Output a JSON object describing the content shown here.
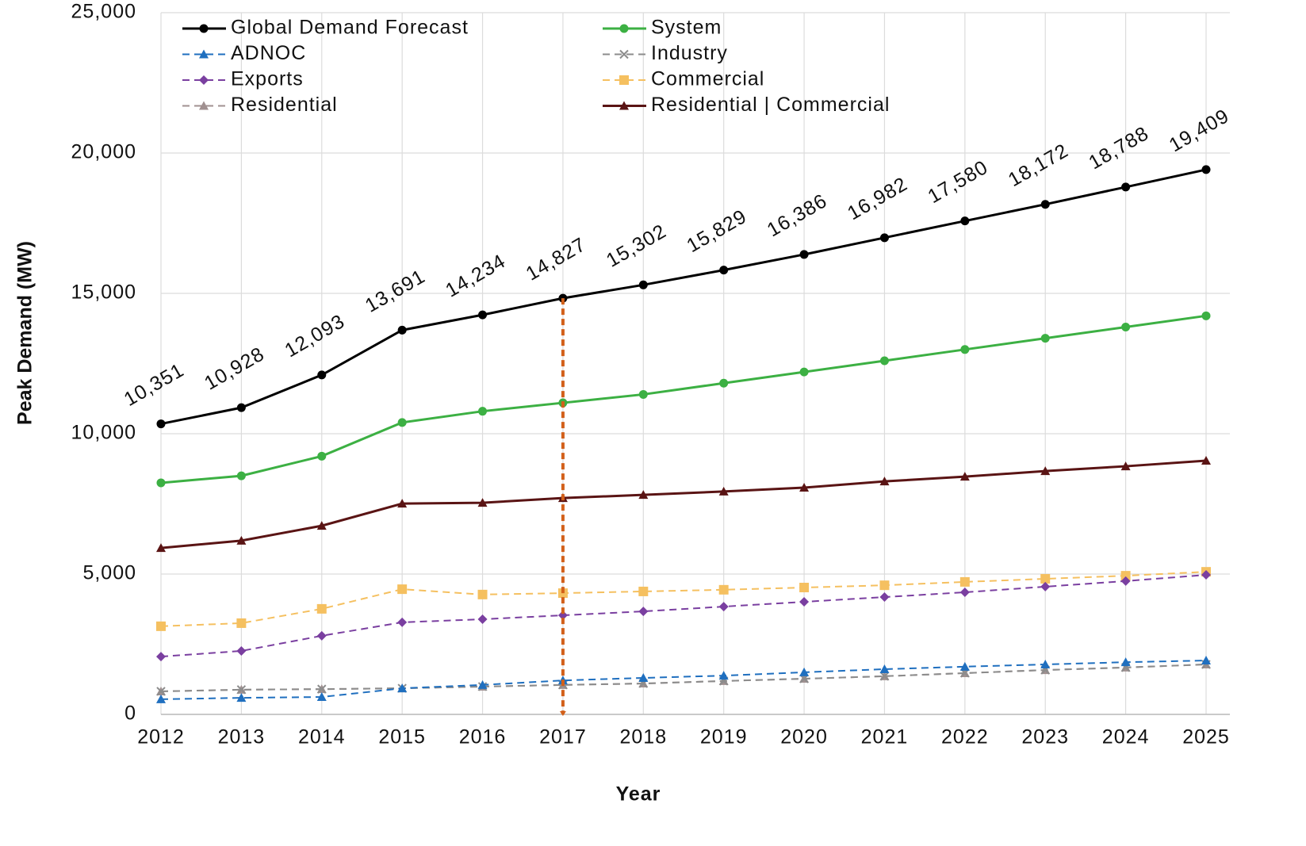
{
  "chart_data": {
    "type": "line",
    "ylabel": "Peak Demand (MW)",
    "xlabel": "Year",
    "categories": [
      "2012",
      "2013",
      "2014",
      "2015",
      "2016",
      "2017",
      "2018",
      "2019",
      "2020",
      "2021",
      "2022",
      "2023",
      "2024",
      "2025"
    ],
    "ylim": [
      0,
      25000
    ],
    "yticks": [
      0,
      {
        "value": 5000,
        "label": "5,000"
      },
      {
        "value": 10000,
        "label": "10,000"
      },
      {
        "value": 15000,
        "label": "15,000"
      },
      {
        "value": 20000,
        "label": "20,000"
      },
      {
        "value": 25000,
        "label": "25,000"
      }
    ],
    "grid": true,
    "legend": "top",
    "reference_line": {
      "category": "2017",
      "color": "#d2601a"
    },
    "series": [
      {
        "name": "Global Demand Forecast",
        "color": "#000000",
        "marker": "circle",
        "dashed": false,
        "values": [
          10351,
          10928,
          12093,
          13691,
          14234,
          14827,
          15302,
          15829,
          16386,
          16982,
          17580,
          18172,
          18788,
          19409
        ],
        "value_labels": [
          "10,351",
          "10,928",
          "12,093",
          "13,691",
          "14,234",
          "14,827",
          "15,302",
          "15,829",
          "16,386",
          "16,982",
          "17,580",
          "18,172",
          "18,788",
          "19,409"
        ]
      },
      {
        "name": "System",
        "color": "#3cb043",
        "marker": "circle",
        "dashed": false,
        "values": [
          8250,
          8500,
          9200,
          10400,
          10800,
          11100,
          11400,
          11800,
          12200,
          12600,
          13000,
          13400,
          13800,
          14200
        ]
      },
      {
        "name": "ADNOC",
        "color": "#1f6fbf",
        "marker": "triangle",
        "dashed": true,
        "values": [
          540,
          590,
          620,
          930,
          1050,
          1210,
          1300,
          1380,
          1500,
          1610,
          1700,
          1780,
          1860,
          1920
        ]
      },
      {
        "name": "Industry",
        "color": "#8c8c8c",
        "marker": "x",
        "dashed": true,
        "values": [
          820,
          880,
          900,
          930,
          990,
          1050,
          1100,
          1190,
          1270,
          1360,
          1470,
          1580,
          1670,
          1780
        ]
      },
      {
        "name": "Exports",
        "color": "#7a3fa0",
        "marker": "diamond",
        "dashed": true,
        "values": [
          2060,
          2260,
          2800,
          3280,
          3390,
          3530,
          3670,
          3840,
          4010,
          4180,
          4350,
          4550,
          4750,
          4970
        ]
      },
      {
        "name": "Commercial",
        "color": "#f5c060",
        "marker": "square",
        "dashed": true,
        "values": [
          3140,
          3250,
          3760,
          4460,
          4270,
          4320,
          4380,
          4440,
          4520,
          4600,
          4720,
          4830,
          4940,
          5080
        ]
      },
      {
        "name": "Residential",
        "color": "#a09090",
        "marker": "triangle",
        "dashed": true,
        "values": [
          820,
          880,
          900,
          930,
          990,
          1050,
          1100,
          1190,
          1270,
          1360,
          1470,
          1580,
          1670,
          1780
        ]
      },
      {
        "name": "Residential | Commercial",
        "color": "#5a1414",
        "marker": "triangle",
        "dashed": false,
        "values": [
          5930,
          6190,
          6720,
          7510,
          7540,
          7710,
          7820,
          7940,
          8080,
          8300,
          8470,
          8670,
          8840,
          9040
        ]
      }
    ]
  }
}
